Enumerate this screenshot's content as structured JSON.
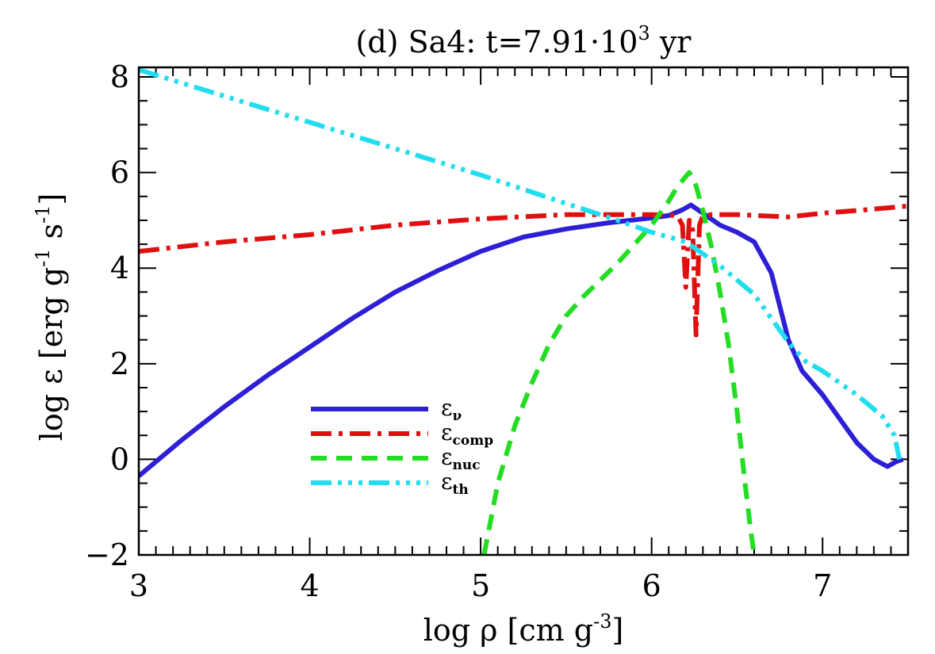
{
  "chart_data": {
    "type": "line",
    "title": {
      "prefix": "(d) Sa4: t=7.91·10",
      "sup": "3",
      "suffix": " yr"
    },
    "xlabel": {
      "prefix": "log ρ [cm g",
      "sup": "-3",
      "suffix": "]"
    },
    "ylabel": {
      "p1": "log ε [erg g",
      "sup1": "-1",
      "p2": " s",
      "sup2": "-1",
      "p3": "]"
    },
    "xlim": [
      3,
      7.5
    ],
    "ylim": [
      -2,
      8.2
    ],
    "xticks": [
      3,
      4,
      5,
      6,
      7
    ],
    "yticks": [
      -2,
      0,
      2,
      4,
      6,
      8
    ],
    "xtick_labels": [
      "3",
      "4",
      "5",
      "6",
      "7"
    ],
    "ytick_labels": [
      "−2",
      "0",
      "2",
      "4",
      "6",
      "8"
    ],
    "grid": false,
    "legend_position": "lower-left",
    "series": [
      {
        "name": "ε",
        "sub": "ν",
        "color": "#2c1fd6",
        "style": "solid",
        "x": [
          3.0,
          3.25,
          3.5,
          3.75,
          4.0,
          4.25,
          4.5,
          4.75,
          5.0,
          5.25,
          5.5,
          5.75,
          6.0,
          6.1,
          6.18,
          6.23,
          6.3,
          6.4,
          6.5,
          6.6,
          6.7,
          6.8,
          6.88,
          7.0,
          7.1,
          7.2,
          7.3,
          7.38,
          7.43,
          7.47
        ],
        "y": [
          -0.35,
          0.4,
          1.1,
          1.75,
          2.35,
          2.95,
          3.5,
          3.95,
          4.35,
          4.65,
          4.82,
          4.95,
          5.05,
          5.1,
          5.22,
          5.32,
          5.15,
          4.9,
          4.75,
          4.55,
          3.9,
          2.5,
          1.85,
          1.35,
          0.85,
          0.35,
          0.0,
          -0.15,
          -0.05,
          0.0
        ]
      },
      {
        "name": "ε",
        "sub": "comp",
        "color": "#e01010",
        "style": "dashdot",
        "x": [
          3.0,
          3.5,
          4.0,
          4.5,
          5.0,
          5.5,
          6.0,
          6.15,
          6.18,
          6.2,
          6.22,
          6.24,
          6.26,
          6.28,
          6.3,
          6.35,
          6.5,
          6.8,
          7.0,
          7.25,
          7.5
        ],
        "y": [
          4.35,
          4.55,
          4.7,
          4.9,
          5.03,
          5.12,
          5.12,
          5.1,
          4.9,
          3.6,
          5.0,
          4.8,
          2.6,
          4.9,
          5.1,
          5.12,
          5.12,
          5.07,
          5.15,
          5.22,
          5.3
        ]
      },
      {
        "name": "ε",
        "sub": "nuc",
        "color": "#22dd22",
        "style": "dashed",
        "x": [
          5.02,
          5.1,
          5.2,
          5.3,
          5.4,
          5.5,
          5.6,
          5.7,
          5.8,
          5.9,
          6.0,
          6.1,
          6.15,
          6.22,
          6.25,
          6.3,
          6.35,
          6.4,
          6.45,
          6.5,
          6.55,
          6.58,
          6.6
        ],
        "y": [
          -2.0,
          -0.5,
          0.7,
          1.6,
          2.4,
          3.0,
          3.4,
          3.75,
          4.1,
          4.5,
          4.9,
          5.4,
          5.7,
          6.0,
          5.85,
          5.2,
          4.45,
          3.5,
          2.4,
          1.0,
          -0.6,
          -1.5,
          -2.0
        ]
      },
      {
        "name": "ε",
        "sub": "th",
        "color": "#22ddee",
        "style": "dashdotdot",
        "x": [
          3.0,
          3.5,
          4.0,
          4.5,
          5.0,
          5.5,
          5.8,
          6.0,
          6.2,
          6.4,
          6.6,
          6.8,
          6.9,
          7.0,
          7.2,
          7.35,
          7.42,
          7.45
        ],
        "y": [
          8.15,
          7.6,
          7.05,
          6.5,
          5.95,
          5.35,
          5.0,
          4.75,
          4.55,
          4.05,
          3.45,
          2.45,
          2.05,
          1.85,
          1.35,
          0.9,
          0.5,
          0.0
        ]
      }
    ]
  }
}
